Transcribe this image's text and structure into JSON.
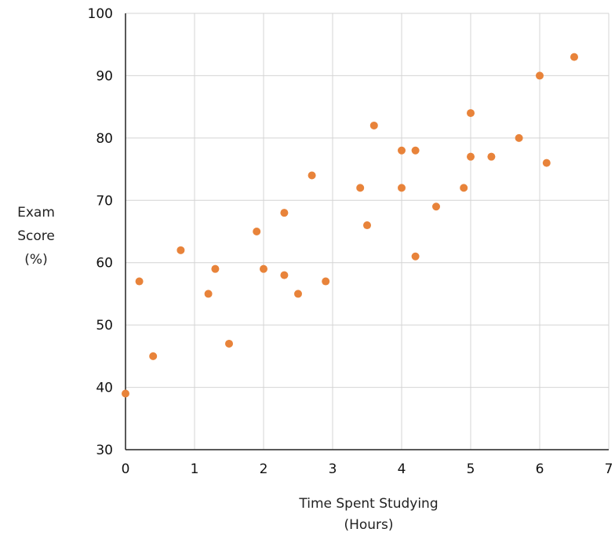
{
  "chart_data": {
    "type": "scatter",
    "title": "",
    "xlabel_lines": [
      "Time Spent Studying",
      "(Hours)"
    ],
    "ylabel_lines": [
      "Exam",
      "Score",
      "(%)"
    ],
    "xlim": [
      0,
      7
    ],
    "ylim": [
      30,
      100
    ],
    "xticks": [
      0,
      1,
      2,
      3,
      4,
      5,
      6,
      7
    ],
    "yticks": [
      30,
      40,
      50,
      60,
      70,
      80,
      90,
      100
    ],
    "grid": true,
    "marker_color": "#E8833A",
    "grid_color": "#d4d4d4",
    "axis_color": "#222222",
    "points": [
      {
        "x": 0.0,
        "y": 39
      },
      {
        "x": 0.2,
        "y": 57
      },
      {
        "x": 0.4,
        "y": 45
      },
      {
        "x": 0.8,
        "y": 62
      },
      {
        "x": 1.2,
        "y": 55
      },
      {
        "x": 1.3,
        "y": 59
      },
      {
        "x": 1.5,
        "y": 47
      },
      {
        "x": 1.9,
        "y": 65
      },
      {
        "x": 2.0,
        "y": 59
      },
      {
        "x": 2.3,
        "y": 68
      },
      {
        "x": 2.3,
        "y": 58
      },
      {
        "x": 2.5,
        "y": 55
      },
      {
        "x": 2.7,
        "y": 74
      },
      {
        "x": 2.9,
        "y": 57
      },
      {
        "x": 3.4,
        "y": 72
      },
      {
        "x": 3.5,
        "y": 66
      },
      {
        "x": 3.6,
        "y": 82
      },
      {
        "x": 4.0,
        "y": 78
      },
      {
        "x": 4.0,
        "y": 72
      },
      {
        "x": 4.2,
        "y": 78
      },
      {
        "x": 4.2,
        "y": 61
      },
      {
        "x": 4.5,
        "y": 69
      },
      {
        "x": 4.9,
        "y": 72
      },
      {
        "x": 5.0,
        "y": 84
      },
      {
        "x": 5.0,
        "y": 77
      },
      {
        "x": 5.3,
        "y": 77
      },
      {
        "x": 5.7,
        "y": 80
      },
      {
        "x": 6.0,
        "y": 90
      },
      {
        "x": 6.1,
        "y": 76
      },
      {
        "x": 6.5,
        "y": 93
      }
    ]
  }
}
